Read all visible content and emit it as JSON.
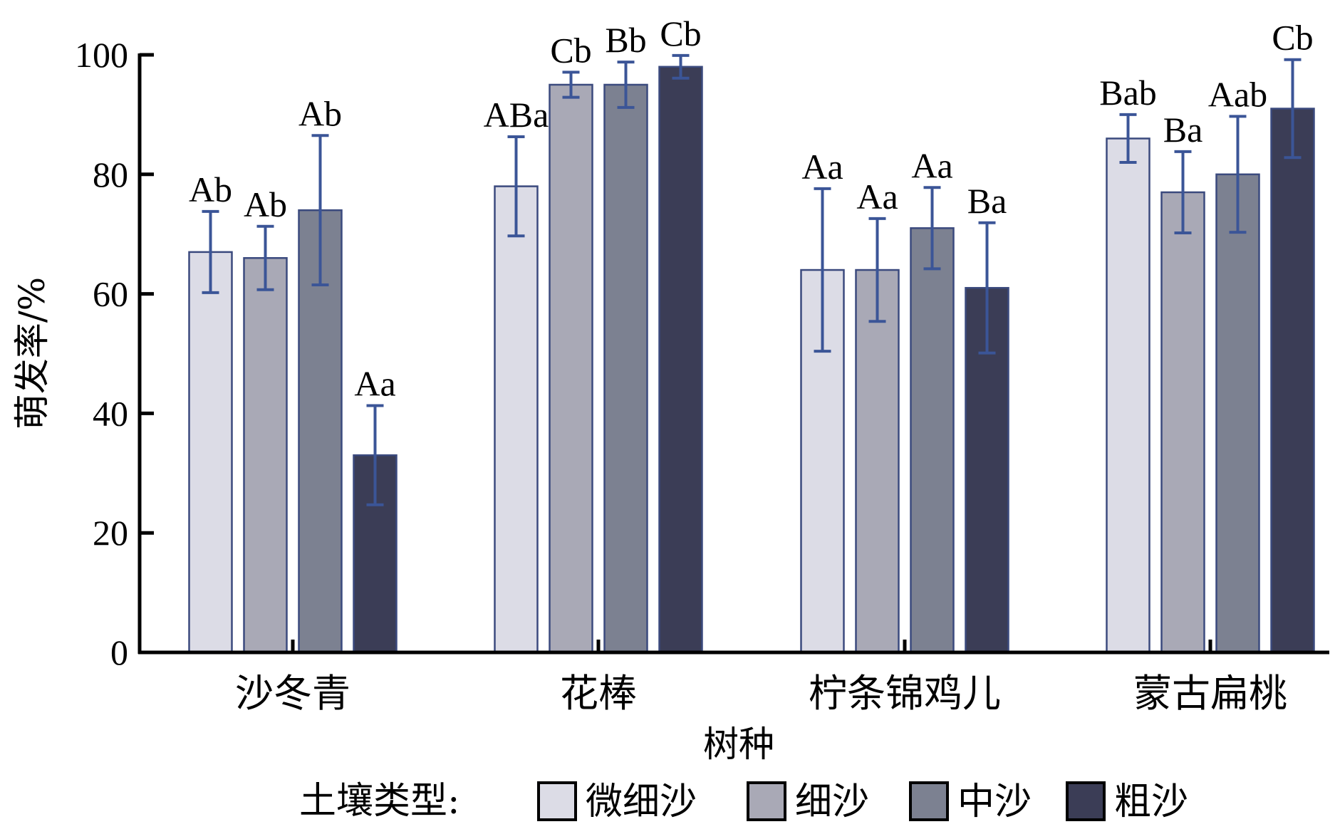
{
  "chart_data": {
    "type": "bar",
    "ylabel": "萌发率/%",
    "xlabel": "树种",
    "ylim": [
      0,
      100
    ],
    "yticks": [
      0,
      20,
      40,
      60,
      80,
      100
    ],
    "categories": [
      "沙冬青",
      "花棒",
      "柠条锦鸡儿",
      "蒙古扁桃"
    ],
    "legend": {
      "title": "土壤类型:",
      "placement": "bottom",
      "items": [
        "微细沙",
        "细沙",
        "中沙",
        "粗沙"
      ]
    },
    "colors": [
      "#dcdce6",
      "#a9a9b6",
      "#7c8191",
      "#3b3d56"
    ],
    "bar_edge_color": "#3b4a7e",
    "errorbar_color": "#3b5597",
    "series": [
      {
        "name": "微细沙",
        "values": [
          67,
          78,
          64,
          86
        ],
        "err": [
          6.8,
          8.3,
          13.6,
          4.0
        ],
        "labels": [
          "Ab",
          "ABa",
          "Aa",
          "Bab"
        ]
      },
      {
        "name": "细沙",
        "values": [
          66,
          95,
          64,
          77
        ],
        "err": [
          5.3,
          2.1,
          8.6,
          6.8
        ],
        "labels": [
          "Ab",
          "Cb",
          "Aa",
          "Ba"
        ]
      },
      {
        "name": "中沙",
        "values": [
          74,
          95,
          71,
          80
        ],
        "err": [
          12.5,
          3.8,
          6.8,
          9.7
        ],
        "labels": [
          "Ab",
          "Bb",
          "Aa",
          "Aab"
        ]
      },
      {
        "name": "粗沙",
        "values": [
          33,
          98,
          61,
          91
        ],
        "err": [
          8.3,
          1.9,
          10.9,
          8.2
        ],
        "labels": [
          "Aa",
          "Cb",
          "Ba",
          "Cb"
        ]
      }
    ]
  }
}
